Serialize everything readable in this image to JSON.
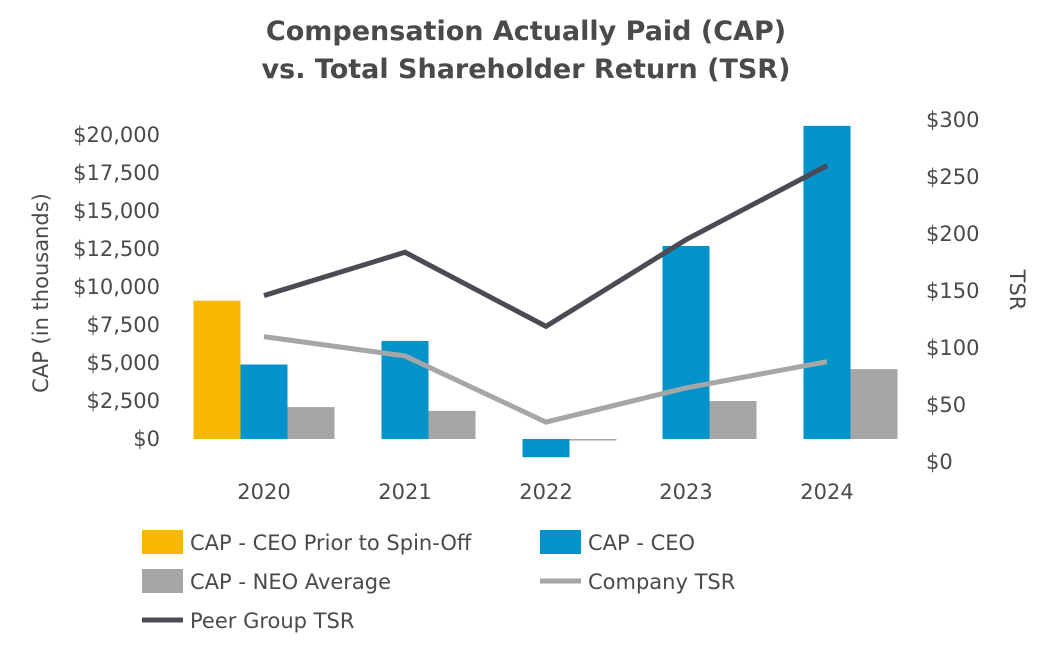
{
  "chart_data": {
    "type": "bar",
    "title_lines": [
      "Compensation Actually Paid (CAP)",
      "vs. Total Shareholder Return (TSR)"
    ],
    "categories": [
      "2020",
      "2021",
      "2022",
      "2023",
      "2024"
    ],
    "ylabel": "CAP (in thousands)",
    "y2label": "TSR",
    "ylim": [
      0,
      20000
    ],
    "y2lim": [
      0,
      300
    ],
    "yticks": [
      {
        "value": 0,
        "label": "$0"
      },
      {
        "value": 2500,
        "label": "$2,500"
      },
      {
        "value": 5000,
        "label": "$5,000"
      },
      {
        "value": 7500,
        "label": "$7,500"
      },
      {
        "value": 10000,
        "label": "$10,000"
      },
      {
        "value": 12500,
        "label": "$12,500"
      },
      {
        "value": 15000,
        "label": "$15,000"
      },
      {
        "value": 17500,
        "label": "$17,500"
      },
      {
        "value": 20000,
        "label": "$20,000"
      }
    ],
    "y2ticks": [
      {
        "value": 0,
        "label": "$0"
      },
      {
        "value": 50,
        "label": "$50"
      },
      {
        "value": 100,
        "label": "$100"
      },
      {
        "value": 150,
        "label": "$150"
      },
      {
        "value": 200,
        "label": "$200"
      },
      {
        "value": 250,
        "label": "$250"
      },
      {
        "value": 300,
        "label": "$300"
      }
    ],
    "bar_series": [
      {
        "name": "CAP - CEO Prior to Spin-Off",
        "color": "#f8b800",
        "values": [
          9100,
          null,
          null,
          null,
          null
        ]
      },
      {
        "name": "CAP - CEO",
        "color": "#0193c9",
        "values": [
          4900,
          6450,
          -1200,
          12700,
          20600
        ]
      },
      {
        "name": "CAP - NEO Average",
        "color": "#a5a6a8",
        "values": [
          2100,
          1850,
          -100,
          2500,
          4600
        ]
      }
    ],
    "line_series": [
      {
        "name": "Company TSR",
        "color": "#a5a6a8",
        "values": [
          110,
          93,
          35,
          65,
          88
        ]
      },
      {
        "name": "Peer Group TSR",
        "color": "#4a4b55",
        "values": [
          146,
          184,
          119,
          195,
          260
        ]
      }
    ],
    "legend": [
      {
        "name": "CAP - CEO Prior to Spin-Off",
        "marker": "box",
        "color": "#f8b800"
      },
      {
        "name": "CAP - CEO",
        "marker": "box",
        "color": "#0193c9"
      },
      {
        "name": "CAP - NEO Average",
        "marker": "box",
        "color": "#a5a6a8"
      },
      {
        "name": "Company TSR",
        "marker": "line",
        "color": "#a5a6a8"
      },
      {
        "name": "Peer Group TSR",
        "marker": "line",
        "color": "#4a4b55"
      }
    ]
  }
}
